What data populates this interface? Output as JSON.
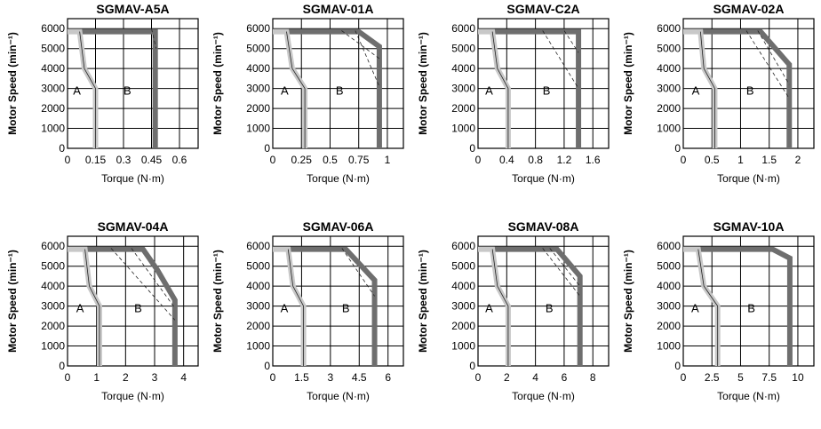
{
  "chart_data": [
    {
      "type": "line",
      "title": "SGMAV-A5A",
      "xlabel": "Torque (N·m)",
      "ylabel": "Motor Speed (min⁻¹)",
      "xticks": [
        "0",
        "0.15",
        "0.3",
        "0.45",
        "0.6"
      ],
      "xtick_values": [
        0,
        0.15,
        0.3,
        0.45,
        0.6
      ],
      "yticks": [
        "0",
        "1000",
        "2000",
        "3000",
        "4000",
        "5000",
        "6000"
      ],
      "ylim": [
        0,
        6500
      ],
      "xlim": [
        0,
        0.7
      ],
      "series": [
        {
          "name": "A",
          "points": [
            [
              0,
              5850
            ],
            [
              0.065,
              5850
            ],
            [
              0.09,
              4000
            ],
            [
              0.15,
              3000
            ],
            [
              0.15,
              0
            ]
          ]
        },
        {
          "name": "B",
          "points": [
            [
              0.065,
              5850
            ],
            [
              0.47,
              5850
            ],
            [
              0.47,
              0
            ]
          ]
        }
      ],
      "dashed": [
        [
          [
            0.45,
            6000
          ],
          [
            0.475,
            5000
          ]
        ]
      ],
      "annotations": [
        "A",
        "B"
      ],
      "label_pos": [
        [
          0.03,
          2700
        ],
        [
          0.3,
          2700
        ]
      ]
    },
    {
      "type": "line",
      "title": "SGMAV-01A",
      "xlabel": "Torque (N·m)",
      "ylabel": "Motor Speed (min⁻¹)",
      "xticks": [
        "0",
        "0.25",
        "0.5",
        "0.75",
        "1"
      ],
      "xtick_values": [
        0,
        0.25,
        0.5,
        0.75,
        1
      ],
      "yticks": [
        "0",
        "1000",
        "2000",
        "3000",
        "4000",
        "5000",
        "6000"
      ],
      "ylim": [
        0,
        6500
      ],
      "xlim": [
        0,
        1.14
      ],
      "series": [
        {
          "name": "A",
          "points": [
            [
              0,
              5850
            ],
            [
              0.12,
              5850
            ],
            [
              0.17,
              4000
            ],
            [
              0.28,
              3000
            ],
            [
              0.28,
              0
            ]
          ]
        },
        {
          "name": "B",
          "points": [
            [
              0.12,
              5850
            ],
            [
              0.75,
              5850
            ],
            [
              0.93,
              5100
            ],
            [
              0.93,
              0
            ]
          ]
        }
      ],
      "dashed": [
        [
          [
            0.6,
            5900
          ],
          [
            0.93,
            4500
          ]
        ],
        [
          [
            0.72,
            5900
          ],
          [
            0.93,
            3100
          ]
        ]
      ],
      "annotations": [
        "A",
        "B"
      ],
      "label_pos": [
        [
          0.07,
          2700
        ],
        [
          0.55,
          2700
        ]
      ]
    },
    {
      "type": "line",
      "title": "SGMAV-C2A",
      "xlabel": "Torque (N·m)",
      "ylabel": "Motor Speed (min⁻¹)",
      "xticks": [
        "0",
        "0.4",
        "0.8",
        "1.2",
        "1.6"
      ],
      "xtick_values": [
        0,
        0.4,
        0.8,
        1.2,
        1.6
      ],
      "yticks": [
        "0",
        "1000",
        "2000",
        "3000",
        "4000",
        "5000",
        "6000"
      ],
      "ylim": [
        0,
        6500
      ],
      "xlim": [
        0,
        1.82
      ],
      "series": [
        {
          "name": "A",
          "points": [
            [
              0,
              5850
            ],
            [
              0.2,
              5850
            ],
            [
              0.27,
              4000
            ],
            [
              0.42,
              3000
            ],
            [
              0.42,
              0
            ]
          ]
        },
        {
          "name": "B",
          "points": [
            [
              0.2,
              5850
            ],
            [
              1.4,
              5850
            ],
            [
              1.4,
              0
            ]
          ]
        }
      ],
      "dashed": [
        [
          [
            0.9,
            5900
          ],
          [
            1.4,
            3000
          ]
        ],
        [
          [
            1.2,
            5900
          ],
          [
            1.4,
            4800
          ]
        ]
      ],
      "annotations": [
        "A",
        "B"
      ],
      "label_pos": [
        [
          0.1,
          2700
        ],
        [
          0.9,
          2700
        ]
      ]
    },
    {
      "type": "line",
      "title": "SGMAV-02A",
      "xlabel": "Torque (N·m)",
      "ylabel": "Motor Speed (min⁻¹)",
      "xticks": [
        "0",
        "0.5",
        "1",
        "1.5",
        "2"
      ],
      "xtick_values": [
        0,
        0.5,
        1,
        1.5,
        2
      ],
      "yticks": [
        "0",
        "1000",
        "2000",
        "3000",
        "4000",
        "5000",
        "6000"
      ],
      "ylim": [
        0,
        6500
      ],
      "xlim": [
        0,
        2.28
      ],
      "series": [
        {
          "name": "A",
          "points": [
            [
              0,
              5850
            ],
            [
              0.3,
              5850
            ],
            [
              0.36,
              4000
            ],
            [
              0.55,
              3000
            ],
            [
              0.55,
              0
            ]
          ]
        },
        {
          "name": "B",
          "points": [
            [
              0.3,
              5850
            ],
            [
              1.35,
              5850
            ],
            [
              1.85,
              4200
            ],
            [
              1.85,
              0
            ]
          ]
        }
      ],
      "dashed": [
        [
          [
            1.1,
            5900
          ],
          [
            1.85,
            2500
          ]
        ],
        [
          [
            1.3,
            5900
          ],
          [
            1.85,
            3200
          ]
        ]
      ],
      "annotations": [
        "A",
        "B"
      ],
      "label_pos": [
        [
          0.15,
          2700
        ],
        [
          1.1,
          2700
        ]
      ]
    },
    {
      "type": "line",
      "title": "SGMAV-04A",
      "xlabel": "Torque (N·m)",
      "ylabel": "Motor Speed (min⁻¹)",
      "xticks": [
        "0",
        "1",
        "2",
        "3",
        "4"
      ],
      "xtick_values": [
        0,
        1,
        2,
        3,
        4
      ],
      "yticks": [
        "0",
        "1000",
        "2000",
        "3000",
        "4000",
        "5000",
        "6000"
      ],
      "ylim": [
        0,
        6500
      ],
      "xlim": [
        0,
        4.5
      ],
      "series": [
        {
          "name": "A",
          "points": [
            [
              0,
              5850
            ],
            [
              0.6,
              5850
            ],
            [
              0.75,
              4000
            ],
            [
              1.1,
              3000
            ],
            [
              1.1,
              0
            ]
          ]
        },
        {
          "name": "B",
          "points": [
            [
              0.6,
              5850
            ],
            [
              2.6,
              5850
            ],
            [
              3.1,
              4800
            ],
            [
              3.7,
              3300
            ],
            [
              3.7,
              0
            ]
          ]
        }
      ],
      "dashed": [
        [
          [
            1.5,
            5900
          ],
          [
            3.7,
            2300
          ]
        ],
        [
          [
            2.2,
            5900
          ],
          [
            3.7,
            2900
          ]
        ]
      ],
      "annotations": [
        "A",
        "B"
      ],
      "label_pos": [
        [
          0.3,
          2700
        ],
        [
          2.3,
          2700
        ]
      ]
    },
    {
      "type": "line",
      "title": "SGMAV-06A",
      "xlabel": "Torque (N·m)",
      "ylabel": "Motor Speed (min⁻¹)",
      "xticks": [
        "0",
        "1.5",
        "3",
        "4.5",
        "6"
      ],
      "xtick_values": [
        0,
        1.5,
        3,
        4.5,
        6
      ],
      "yticks": [
        "0",
        "1000",
        "2000",
        "3000",
        "4000",
        "5000",
        "6000"
      ],
      "ylim": [
        0,
        6500
      ],
      "xlim": [
        0,
        6.8
      ],
      "series": [
        {
          "name": "A",
          "points": [
            [
              0,
              5850
            ],
            [
              0.8,
              5850
            ],
            [
              1.05,
              4000
            ],
            [
              1.6,
              3000
            ],
            [
              1.6,
              0
            ]
          ]
        },
        {
          "name": "B",
          "points": [
            [
              0.8,
              5850
            ],
            [
              3.8,
              5850
            ],
            [
              5.3,
              4300
            ],
            [
              5.3,
              0
            ]
          ]
        }
      ],
      "dashed": [
        [
          [
            3.6,
            5900
          ],
          [
            5.3,
            3500
          ]
        ]
      ],
      "annotations": [
        "A",
        "B"
      ],
      "label_pos": [
        [
          0.4,
          2700
        ],
        [
          3.6,
          2700
        ]
      ]
    },
    {
      "type": "line",
      "title": "SGMAV-08A",
      "xlabel": "Torque (N·m)",
      "ylabel": "Motor Speed (min⁻¹)",
      "xticks": [
        "0",
        "2",
        "4",
        "6",
        "8"
      ],
      "xtick_values": [
        0,
        2,
        4,
        6,
        8
      ],
      "yticks": [
        "0",
        "1000",
        "2000",
        "3000",
        "4000",
        "5000",
        "6000"
      ],
      "ylim": [
        0,
        6500
      ],
      "xlim": [
        0,
        9.1
      ],
      "series": [
        {
          "name": "A",
          "points": [
            [
              0,
              5850
            ],
            [
              1,
              5850
            ],
            [
              1.35,
              4000
            ],
            [
              2.1,
              3000
            ],
            [
              2.1,
              0
            ]
          ]
        },
        {
          "name": "B",
          "points": [
            [
              1,
              5850
            ],
            [
              5.5,
              5850
            ],
            [
              7.1,
              4500
            ],
            [
              7.1,
              0
            ]
          ]
        }
      ],
      "dashed": [
        [
          [
            4.5,
            5900
          ],
          [
            7.1,
            3500
          ]
        ],
        [
          [
            5,
            5900
          ],
          [
            7.1,
            4000
          ]
        ]
      ],
      "annotations": [
        "A",
        "B"
      ],
      "label_pos": [
        [
          0.5,
          2700
        ],
        [
          4.7,
          2700
        ]
      ]
    },
    {
      "type": "line",
      "title": "SGMAV-10A",
      "xlabel": "Torque (N·m)",
      "ylabel": "Motor Speed (min⁻¹)",
      "xticks": [
        "0",
        "2.5",
        "5",
        "7.5",
        "10"
      ],
      "xtick_values": [
        0,
        2.5,
        5,
        7.5,
        10
      ],
      "yticks": [
        "0",
        "1000",
        "2000",
        "3000",
        "4000",
        "5000",
        "6000"
      ],
      "ylim": [
        0,
        6500
      ],
      "xlim": [
        0,
        11.4
      ],
      "series": [
        {
          "name": "A",
          "points": [
            [
              0,
              5850
            ],
            [
              1.3,
              5850
            ],
            [
              1.8,
              4000
            ],
            [
              3,
              3000
            ],
            [
              3,
              0
            ]
          ]
        },
        {
          "name": "B",
          "points": [
            [
              1.3,
              5850
            ],
            [
              7.8,
              5850
            ],
            [
              9.3,
              5400
            ],
            [
              9.3,
              0
            ]
          ]
        }
      ],
      "dashed": [],
      "annotations": [
        "A",
        "B"
      ],
      "label_pos": [
        [
          0.7,
          2700
        ],
        [
          5.6,
          2700
        ]
      ]
    }
  ],
  "colors": {
    "A": "#c8c8c8",
    "B": "#6e6e6e",
    "grid": "#000000"
  }
}
